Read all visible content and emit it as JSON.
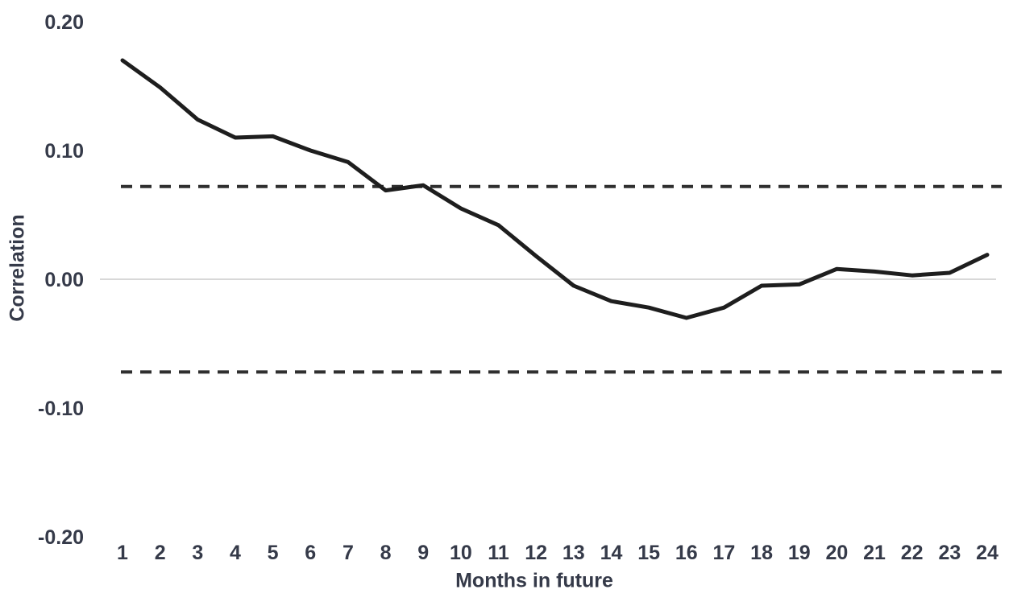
{
  "chart_data": {
    "type": "line",
    "xlabel": "Months in future",
    "ylabel": "Correlation",
    "x": [
      1,
      2,
      3,
      4,
      5,
      6,
      7,
      8,
      9,
      10,
      11,
      12,
      13,
      14,
      15,
      16,
      17,
      18,
      19,
      20,
      21,
      22,
      23,
      24
    ],
    "xticks": [
      "1",
      "2",
      "3",
      "4",
      "5",
      "6",
      "7",
      "8",
      "9",
      "10",
      "11",
      "12",
      "13",
      "14",
      "15",
      "16",
      "17",
      "18",
      "19",
      "20",
      "21",
      "22",
      "23",
      "24"
    ],
    "series": [
      {
        "name": "correlation",
        "style": "solid",
        "values": [
          0.17,
          0.149,
          0.124,
          0.11,
          0.111,
          0.1,
          0.091,
          0.069,
          0.073,
          0.055,
          0.042,
          0.018,
          -0.005,
          -0.017,
          -0.022,
          -0.03,
          -0.022,
          -0.005,
          -0.004,
          0.008,
          0.006,
          0.003,
          0.005,
          0.019
        ]
      }
    ],
    "reference_lines": [
      {
        "name": "upper-confidence-bound",
        "value": 0.072,
        "style": "dashed"
      },
      {
        "name": "lower-confidence-bound",
        "value": -0.072,
        "style": "dashed"
      },
      {
        "name": "zero-line",
        "value": 0.0,
        "style": "solid"
      }
    ],
    "yticks": [
      {
        "value": 0.2,
        "label": "0.20"
      },
      {
        "value": 0.1,
        "label": "0.10"
      },
      {
        "value": 0.0,
        "label": "0.00"
      },
      {
        "value": -0.1,
        "label": "-0.10"
      },
      {
        "value": -0.2,
        "label": "-0.20"
      }
    ],
    "ylim": [
      -0.2,
      0.2
    ],
    "xlim": [
      1,
      24
    ],
    "grid": "single horizontal gridline at zero only",
    "legend": "none",
    "colors": {
      "line": "#1e1e1e",
      "dashed": "#2f2f2f",
      "zero_gridline": "#d8d8d8",
      "text": "#353a49",
      "background": "#ffffff"
    }
  }
}
